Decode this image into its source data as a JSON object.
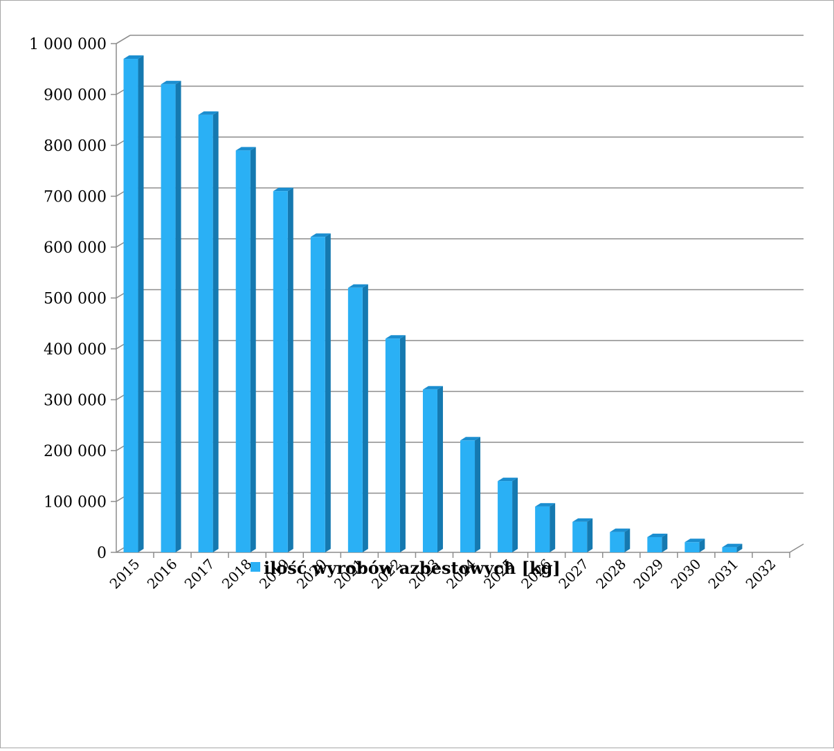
{
  "chart_data": {
    "type": "bar",
    "categories": [
      "2015",
      "2016",
      "2017",
      "2018",
      "2019",
      "2020",
      "2021",
      "2022",
      "2023",
      "2024",
      "2025",
      "2026",
      "2027",
      "2028",
      "2029",
      "2030",
      "2031",
      "2032"
    ],
    "series": [
      {
        "name": "ilość wyrobów azbestowych [kg]",
        "values": [
          970000,
          920000,
          860000,
          790000,
          710000,
          620000,
          520000,
          420000,
          320000,
          220000,
          140000,
          90000,
          60000,
          40000,
          30000,
          20000,
          10000,
          0
        ]
      }
    ],
    "y_ticks": [
      "0",
      "100 000",
      "200 000",
      "300 000",
      "400 000",
      "500 000",
      "600 000",
      "700 000",
      "800 000",
      "900 000",
      "1 000 000"
    ],
    "ylim": [
      0,
      1000000
    ],
    "title": "",
    "xlabel": "",
    "ylabel": "",
    "grid": true,
    "legend_position": "bottom",
    "colors": {
      "bar_front": "#2ab0f5",
      "bar_side": "#1579b0",
      "bar_top": "#1b8ed0",
      "grid": "#8c8c8c",
      "legend_swatch": "#2ab0f5"
    }
  }
}
